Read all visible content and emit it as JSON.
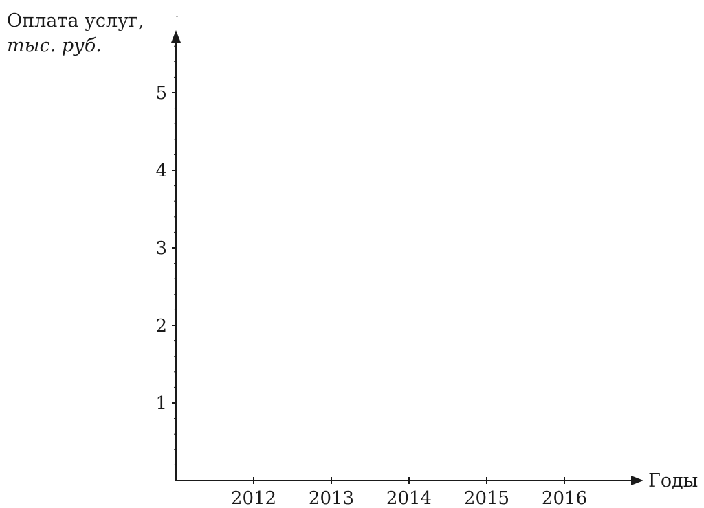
{
  "chart_data": {
    "type": "line",
    "title": "",
    "ylabel": [
      "Оплата услуг,",
      "тыс. руб."
    ],
    "xlabel": "Годы",
    "categories": [
      "2012",
      "2013",
      "2014",
      "2015",
      "2016"
    ],
    "y_ticks": [
      "1",
      "2",
      "3",
      "4",
      "5"
    ],
    "ylim": [
      0,
      5.5
    ],
    "y_minor_step": 0.2,
    "series": [],
    "grid": false,
    "legend": "none"
  }
}
